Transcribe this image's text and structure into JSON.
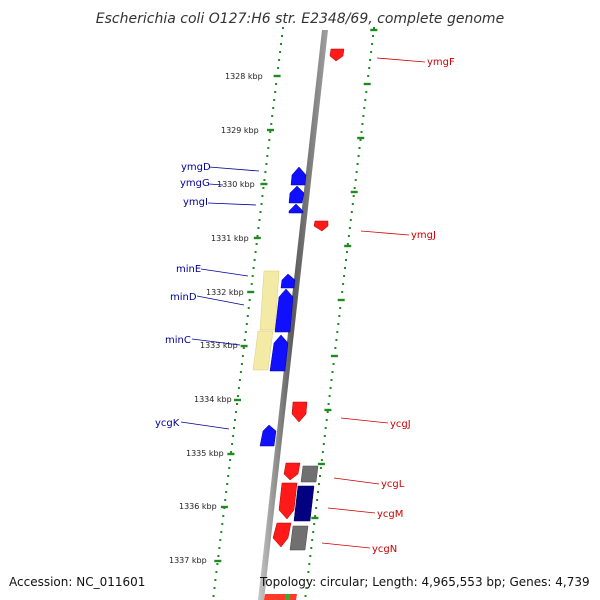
{
  "title": "Escherichia coli O127:H6 str. E2348/69, complete genome",
  "footer": {
    "accession": "Accession: NC_011601",
    "summary": "Topology: circular; Length: 4,965,553 bp; Genes: 4,739"
  },
  "colors": {
    "forward_gene": "#ff0000",
    "reverse_gene": "#0000ff",
    "other_gene": "#707070",
    "dark_gene": "#000080",
    "operon_highlight": "#f3eaa5",
    "tick": "#1f8a1f",
    "backbone": "#8a8a8a",
    "forward_label": "#cc0000",
    "reverse_label": "#000099"
  },
  "kbp_markers": [
    "1328 kbp",
    "1329 kbp",
    "1330 kbp",
    "1331 kbp",
    "1332 kbp",
    "1333 kbp",
    "1334 kbp",
    "1335 kbp",
    "1336 kbp",
    "1337 kbp"
  ],
  "reverse_genes": [
    "ymgD",
    "ymgG",
    "ymgI",
    "minE",
    "minD",
    "minC",
    "ycgK"
  ],
  "forward_genes": [
    "ymgF",
    "ymgJ",
    "ycgJ",
    "ycgL",
    "ycgM",
    "ycgN"
  ]
}
